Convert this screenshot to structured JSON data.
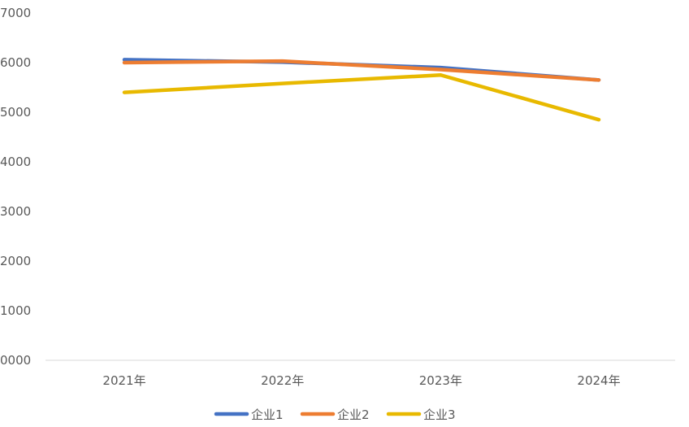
{
  "chart_data": {
    "type": "line",
    "categories": [
      "2021年",
      "2022年",
      "2023年",
      "2024年"
    ],
    "series": [
      {
        "name": "企业1",
        "values": [
          6060,
          6010,
          5900,
          5650
        ],
        "color": "#4472C4"
      },
      {
        "name": "企业2",
        "values": [
          6000,
          6030,
          5860,
          5650
        ],
        "color": "#ED7D31"
      },
      {
        "name": "企业3",
        "values": [
          5400,
          5580,
          5750,
          4850
        ],
        "color": "#E8B900"
      }
    ],
    "yticks": [
      "0000",
      "1000",
      "2000",
      "3000",
      "4000",
      "5000",
      "6000",
      "7000"
    ],
    "ylim": [
      0,
      7000
    ],
    "grid": false,
    "legend_position": "bottom"
  }
}
